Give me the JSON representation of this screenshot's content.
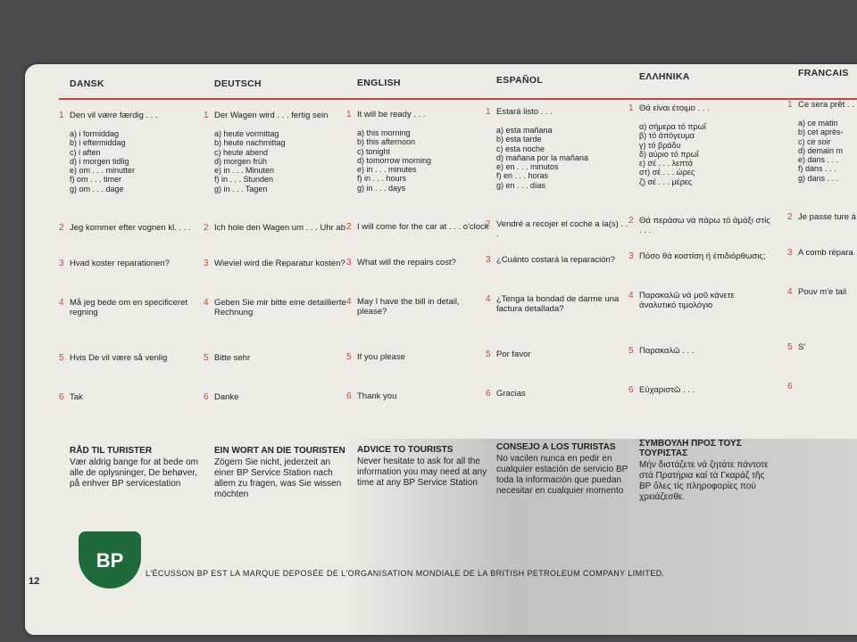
{
  "columns": [
    {
      "header": "DANSK",
      "items": [
        {
          "num": "1",
          "text": "Den vil være færdig . . .",
          "subs": [
            "a) i formiddag",
            "b) i eftermiddag",
            "c) i aften",
            "d) i morgen tidlig",
            "e) om . . . minutter",
            "f) om . . . timer",
            "g) om . . . dage"
          ]
        },
        {
          "num": "2",
          "text": "Jeg kommer efter vognen kl. . . ."
        },
        {
          "num": "3",
          "text": "Hvad koster reparationen?"
        },
        {
          "num": "4",
          "text": "Må jeg bede om en specificeret regning"
        },
        {
          "num": "5",
          "text": "Hvis De vil være så venlig"
        },
        {
          "num": "6",
          "text": "Tak"
        }
      ],
      "advice": {
        "title": "RÅD TIL TURISTER",
        "text": "Vær aldrig bange for at bede om alle de oplysninger, De behøver, på enhver BP servicestation"
      }
    },
    {
      "header": "DEUTSCH",
      "items": [
        {
          "num": "1",
          "text": "Der Wagen wird . . . fertig sein",
          "subs": [
            "a) heute vormittag",
            "b) heute nachmittag",
            "c) heute abend",
            "d) morgen früh",
            "e) in . . . Minuten",
            "f) in . . . Stunden",
            "g) in . . . Tagen"
          ]
        },
        {
          "num": "2",
          "text": "Ich hole den Wagen um . . . Uhr ab"
        },
        {
          "num": "3",
          "text": "Wieviel wird die Reparatur kosten?"
        },
        {
          "num": "4",
          "text": "Geben Sie mir bitte eine detaillierte Rechnung"
        },
        {
          "num": "5",
          "text": "Bitte sehr"
        },
        {
          "num": "6",
          "text": "Danke"
        }
      ],
      "advice": {
        "title": "EIN WORT AN DIE TOURISTEN",
        "text": "Zögern Sie nicht, jederzeit an einer BP Service Station nach allem zu fragen, was Sie wissen möchten"
      }
    },
    {
      "header": "ENGLISH",
      "items": [
        {
          "num": "1",
          "text": "It will be ready . . .",
          "subs": [
            "a) this morning",
            "b) this afternoon",
            "c) tonight",
            "d) tomorrow morning",
            "e) in . . . minutes",
            "f) in . . . hours",
            "g) in . . . days"
          ]
        },
        {
          "num": "2",
          "text": "I will come for the car at . . . o'clock"
        },
        {
          "num": "3",
          "text": "What will the repairs cost?"
        },
        {
          "num": "4",
          "text": "May I have the bill in detail, please?"
        },
        {
          "num": "5",
          "text": "If you please"
        },
        {
          "num": "6",
          "text": "Thank you"
        }
      ],
      "advice": {
        "title": "ADVICE TO TOURISTS",
        "text": "Never hesitate to ask for all the information you may need at any time at any BP Service Station"
      }
    },
    {
      "header": "ESPAÑOL",
      "items": [
        {
          "num": "1",
          "text": "Estará listo . . .",
          "subs": [
            "a) esta mañana",
            "b) esta tarde",
            "c) esta noche",
            "d) mañana por la mañana",
            "e) en . . . minutos",
            "f) en . . . horas",
            "g) en . . . días"
          ]
        },
        {
          "num": "2",
          "text": "Vendré a recojer el coche a la(s) . . ."
        },
        {
          "num": "3",
          "text": "¿Cuánto costará la reparación?"
        },
        {
          "num": "4",
          "text": "¿Tenga la bondad de darme una factura detallada?"
        },
        {
          "num": "5",
          "text": "Por favor"
        },
        {
          "num": "6",
          "text": "Gracias"
        }
      ],
      "advice": {
        "title": "CONSEJO A LOS TURISTAS",
        "text": "No vacilen nunca en pedir en cualquier estación de servicio BP toda la información que puedan necesitar en cualquier momento"
      }
    },
    {
      "header": "ΕΛΛΗΝΙΚΑ",
      "items": [
        {
          "num": "1",
          "text": "Θά είναι έτοιμο . . .",
          "subs": [
            "α) σήμερα τό πρωΐ",
            "β) τό άπόγευμα",
            "γ) τό βράδυ",
            "δ) αύριο τό πρωΐ",
            "ε) σέ . . . λεπτά",
            "στ) σέ . . . ώρες",
            "ζ) σέ . . . μέρες"
          ]
        },
        {
          "num": "2",
          "text": "Θά περάσω νά πάρω τό άμάξι στίς . . ."
        },
        {
          "num": "3",
          "text": "Πόσο θά κοστίση ή έπιδιόρθωσις;"
        },
        {
          "num": "4",
          "text": "Παρακαλῶ νά μοῦ κάνετε άναλυτικό τιμολόγιο"
        },
        {
          "num": "5",
          "text": "Παρακαλῶ . . ."
        },
        {
          "num": "6",
          "text": "Εὐχαριστῶ . . ."
        }
      ],
      "advice": {
        "title": "ΣΥΜΒΟΥΛΗ ΠΡΟΣ ΤΟΥΣ ΤΟΥΡΙΣΤΑΣ",
        "text": "Μήν διστάζετε νά ζητάτε πάντοτε στά Πρατήρια καί τά Γκαράζ τῆς BP ὅλες τίς πληροφορίες πού χρειάζεσθε."
      }
    },
    {
      "header": "FRANCAIS",
      "items": [
        {
          "num": "1",
          "text": "Ce sera prêt . . .",
          "subs": [
            "a) ce matin",
            "b) cet après-",
            "c) ce soir",
            "d) demain m",
            "e) dans . . .",
            "f) dans . . .",
            "g) dans . . ."
          ]
        },
        {
          "num": "2",
          "text": "Je passe ture à"
        },
        {
          "num": "3",
          "text": "A comb répara"
        },
        {
          "num": "4",
          "text": "Pouv m'e tail"
        },
        {
          "num": "5",
          "text": "S'"
        },
        {
          "num": "6"
        }
      ]
    }
  ],
  "footer": {
    "page": "12",
    "logo": "BP",
    "trademark": "L'ÉCUSSON BP EST LA MARQUE DEPOSÉE DE L'ORGANISATION MONDIALE DE LA BRITISH PETROLEUM COMPANY LIMITED."
  }
}
